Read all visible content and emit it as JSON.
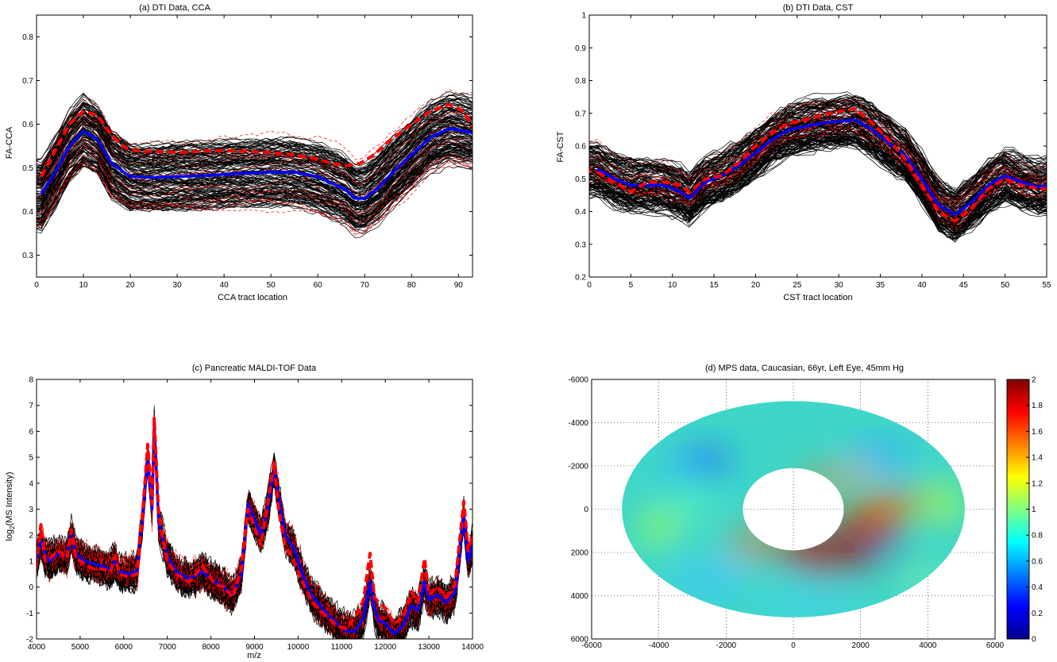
{
  "chart_data": [
    {
      "type": "line",
      "title": "(a) DTI Data, CCA",
      "xlabel": "CCA tract location",
      "ylabel": "FA-CCA",
      "xlim": [
        0,
        93
      ],
      "ylim": [
        0.25,
        0.85
      ],
      "xticks": [
        0,
        10,
        20,
        30,
        40,
        50,
        60,
        70,
        80,
        90
      ],
      "yticks": [
        0.3,
        0.4,
        0.5,
        0.6,
        0.7,
        0.8
      ],
      "ytick_labels": [
        "0.3",
        "0.4",
        "0.5",
        "0.6",
        "0.7",
        "0.8"
      ],
      "series": [
        {
          "color": "#0000ff",
          "style": "solid",
          "x": [
            1,
            4,
            7,
            10,
            13,
            16,
            20,
            25,
            30,
            35,
            40,
            45,
            50,
            55,
            60,
            63,
            66,
            68,
            70,
            73,
            76,
            80,
            84,
            88,
            91,
            93
          ],
          "y": [
            0.44,
            0.49,
            0.55,
            0.585,
            0.565,
            0.51,
            0.48,
            0.478,
            0.48,
            0.482,
            0.485,
            0.488,
            0.49,
            0.49,
            0.48,
            0.465,
            0.45,
            0.43,
            0.43,
            0.455,
            0.49,
            0.53,
            0.57,
            0.59,
            0.585,
            0.58
          ]
        },
        {
          "color": "#ff0000",
          "style": "dashed",
          "x": [
            1,
            4,
            7,
            10,
            13,
            16,
            19,
            22,
            25,
            30,
            35,
            40,
            45,
            50,
            55,
            60,
            63,
            66,
            69,
            72,
            75,
            80,
            84,
            88,
            91,
            93
          ],
          "y": [
            0.48,
            0.54,
            0.6,
            0.63,
            0.62,
            0.575,
            0.545,
            0.538,
            0.538,
            0.535,
            0.538,
            0.54,
            0.538,
            0.535,
            0.53,
            0.52,
            0.51,
            0.505,
            0.51,
            0.53,
            0.56,
            0.6,
            0.63,
            0.645,
            0.63,
            0.595
          ]
        }
      ]
    },
    {
      "type": "line",
      "title": "(b) DTI Data, CST",
      "xlabel": "CST tract location",
      "ylabel": "FA-CST",
      "xlim": [
        0,
        55
      ],
      "ylim": [
        0.2,
        1.0
      ],
      "xticks": [
        0,
        5,
        10,
        15,
        20,
        25,
        30,
        35,
        40,
        45,
        50,
        55
      ],
      "yticks": [
        0.2,
        0.3,
        0.4,
        0.5,
        0.6,
        0.7,
        0.8,
        0.9,
        1.0
      ],
      "ytick_labels": [
        "0.2",
        "0.3",
        "0.4",
        "0.5",
        "0.6",
        "0.7",
        "0.8",
        "0.9",
        "1"
      ],
      "series": [
        {
          "color": "#0000ff",
          "style": "solid",
          "x": [
            1,
            3,
            5,
            7,
            9,
            11,
            12,
            14,
            16,
            18,
            20,
            22,
            24,
            26,
            28,
            30,
            32,
            34,
            36,
            38,
            40,
            42,
            44,
            46,
            48,
            50,
            52,
            54,
            55
          ],
          "y": [
            0.53,
            0.5,
            0.48,
            0.48,
            0.48,
            0.46,
            0.44,
            0.49,
            0.51,
            0.54,
            0.58,
            0.62,
            0.65,
            0.66,
            0.67,
            0.675,
            0.68,
            0.65,
            0.61,
            0.57,
            0.5,
            0.42,
            0.39,
            0.43,
            0.48,
            0.51,
            0.49,
            0.475,
            0.48
          ]
        },
        {
          "color": "#ff0000",
          "style": "dashed",
          "x": [
            1,
            3,
            5,
            7,
            9,
            11,
            12,
            14,
            16,
            18,
            20,
            22,
            24,
            26,
            28,
            30,
            32,
            34,
            36,
            38,
            40,
            42,
            44,
            46,
            48,
            50,
            52,
            54,
            55
          ],
          "y": [
            0.52,
            0.49,
            0.46,
            0.49,
            0.49,
            0.48,
            0.46,
            0.5,
            0.51,
            0.55,
            0.6,
            0.64,
            0.67,
            0.68,
            0.695,
            0.705,
            0.715,
            0.67,
            0.62,
            0.56,
            0.48,
            0.4,
            0.37,
            0.41,
            0.47,
            0.5,
            0.48,
            0.47,
            0.47
          ]
        }
      ]
    },
    {
      "type": "line",
      "title": "(c) Pancreatic MALDI-TOF Data",
      "xlabel": "m/z",
      "ylabel": "log2(MS Intensity)",
      "xlim": [
        4000,
        14000
      ],
      "ylim": [
        -2,
        8
      ],
      "xticks": [
        4000,
        5000,
        6000,
        7000,
        8000,
        9000,
        10000,
        11000,
        12000,
        13000,
        14000
      ],
      "yticks": [
        -2,
        -1,
        0,
        1,
        2,
        3,
        4,
        5,
        6,
        7,
        8
      ],
      "ytick_labels": [
        "-2",
        "-1",
        "0",
        "1",
        "2",
        "3",
        "4",
        "5",
        "6",
        "7",
        "8"
      ],
      "series": [
        {
          "color": "#0000ff",
          "style": "solid",
          "x": [
            4000,
            4100,
            4200,
            4300,
            4500,
            4700,
            4800,
            4900,
            5100,
            5300,
            5500,
            5700,
            5800,
            5900,
            6100,
            6300,
            6450,
            6550,
            6650,
            6700,
            6800,
            7000,
            7200,
            7500,
            7800,
            8100,
            8300,
            8500,
            8700,
            8850,
            9000,
            9150,
            9300,
            9450,
            9550,
            9700,
            9900,
            10100,
            10300,
            10500,
            10700,
            10900,
            11100,
            11300,
            11500,
            11650,
            11750,
            11850,
            12000,
            12200,
            12400,
            12600,
            12750,
            12900,
            13000,
            13200,
            13400,
            13600,
            13800,
            13900,
            14000
          ],
          "y": [
            1.0,
            1.8,
            1.2,
            1.0,
            1.3,
            1.2,
            2.0,
            1.3,
            1.0,
            0.9,
            0.8,
            0.7,
            1.0,
            0.6,
            0.5,
            0.6,
            3.0,
            5.0,
            3.0,
            6.3,
            2.5,
            1.2,
            0.6,
            0.3,
            0.6,
            0.2,
            0.0,
            -0.3,
            0.5,
            3.2,
            2.6,
            2.0,
            3.0,
            4.5,
            3.5,
            2.0,
            1.5,
            0.5,
            -0.3,
            -0.7,
            -1.1,
            -1.4,
            -1.7,
            -1.7,
            -1.2,
            0.2,
            -0.8,
            -1.3,
            -1.4,
            -1.8,
            -1.5,
            -0.7,
            -0.9,
            0.2,
            -0.5,
            -0.3,
            -0.6,
            -0.2,
            2.8,
            1.0,
            1.6
          ]
        },
        {
          "color": "#ff0000",
          "style": "dashed",
          "x": [
            4000,
            4100,
            4200,
            4300,
            4500,
            4700,
            4800,
            4900,
            5100,
            5300,
            5500,
            5700,
            5800,
            5900,
            6100,
            6300,
            6450,
            6550,
            6650,
            6700,
            6800,
            7000,
            7200,
            7500,
            7800,
            8100,
            8300,
            8500,
            8700,
            8850,
            9000,
            9150,
            9300,
            9450,
            9550,
            9700,
            9900,
            10100,
            10300,
            10500,
            10700,
            10900,
            11100,
            11300,
            11500,
            11650,
            11750,
            11850,
            12000,
            12200,
            12400,
            12600,
            12750,
            12900,
            13000,
            13200,
            13400,
            13600,
            13800,
            13900,
            14000
          ],
          "y": [
            0.8,
            2.4,
            1.0,
            1.1,
            1.4,
            1.1,
            2.2,
            1.1,
            0.9,
            0.7,
            0.7,
            0.6,
            1.2,
            0.5,
            0.4,
            0.5,
            3.2,
            5.5,
            3.2,
            6.5,
            2.8,
            1.0,
            0.5,
            0.2,
            0.8,
            0.1,
            0.0,
            -0.4,
            0.7,
            3.0,
            2.3,
            1.6,
            3.2,
            4.8,
            3.0,
            1.6,
            1.0,
            0.2,
            -0.5,
            -0.9,
            -1.2,
            -1.5,
            -1.6,
            -1.2,
            -0.5,
            1.3,
            -0.4,
            -0.6,
            -0.8,
            -1.4,
            -1.2,
            -0.2,
            -0.6,
            1.1,
            -0.3,
            0.0,
            -0.4,
            0.1,
            3.3,
            1.4,
            2.0
          ]
        }
      ]
    },
    {
      "type": "heatmap",
      "title": "(d) MPS data, Caucasian, 66yr, Left Eye, 45mm Hg",
      "xlim": [
        -6000,
        6000
      ],
      "ylim": [
        -6000,
        6000
      ],
      "y_reversed": true,
      "grid": true,
      "xticks": [
        -6000,
        -4000,
        -2000,
        0,
        2000,
        4000,
        6000
      ],
      "yticks": [
        -6000,
        -4000,
        -2000,
        0,
        2000,
        4000,
        6000
      ],
      "annulus": {
        "outer_rx": 5100,
        "outer_ry": 5000,
        "inner_rx": 1500,
        "inner_ry": 1900
      },
      "colorbar": {
        "min": 0,
        "max": 2,
        "ticks": [
          0,
          0.2,
          0.4,
          0.6,
          0.8,
          1,
          1.2,
          1.4,
          1.6,
          1.8,
          2
        ]
      },
      "colormap": "jet"
    }
  ]
}
